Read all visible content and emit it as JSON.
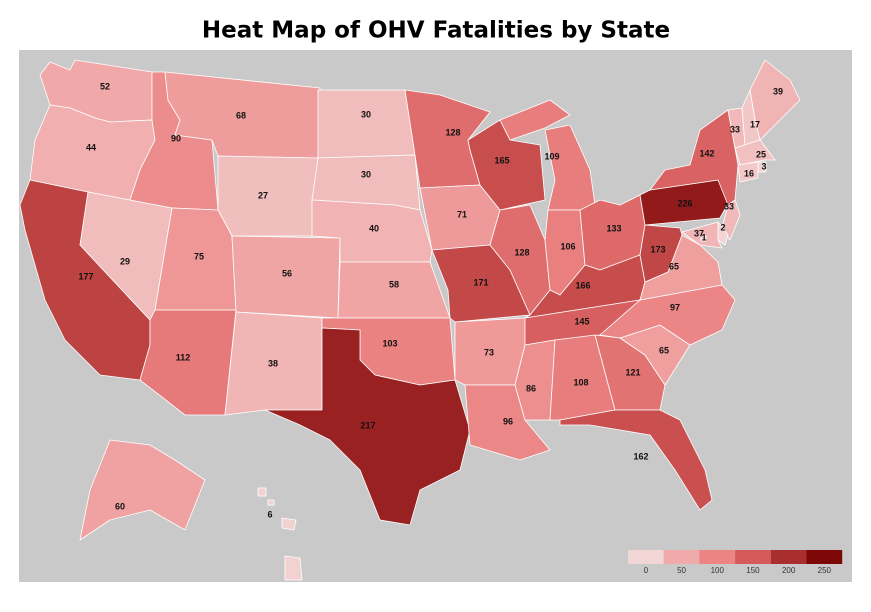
{
  "title": "Heat Map of OHV Fatalities by State",
  "states": [
    52,
    44,
    177,
    29,
    90,
    68,
    27,
    75,
    112,
    56,
    38,
    30,
    30,
    40,
    58,
    103,
    217,
    128,
    71,
    171,
    73,
    96,
    165,
    128,
    109,
    106,
    133,
    166,
    145,
    86,
    108,
    121,
    162,
    65,
    97,
    65,
    173,
    226,
    142,
    39,
    33,
    17,
    25,
    3,
    16,
    33,
    2,
    37,
    1,
    60,
    6
  ],
  "legend": {
    "ticks": [
      0,
      50,
      100,
      150,
      200,
      250
    ],
    "colors": [
      "#f2d6d6",
      "#f1aaaa",
      "#ec8484",
      "#d55b5b",
      "#a92f2f",
      "#7d0707"
    ]
  }
}
